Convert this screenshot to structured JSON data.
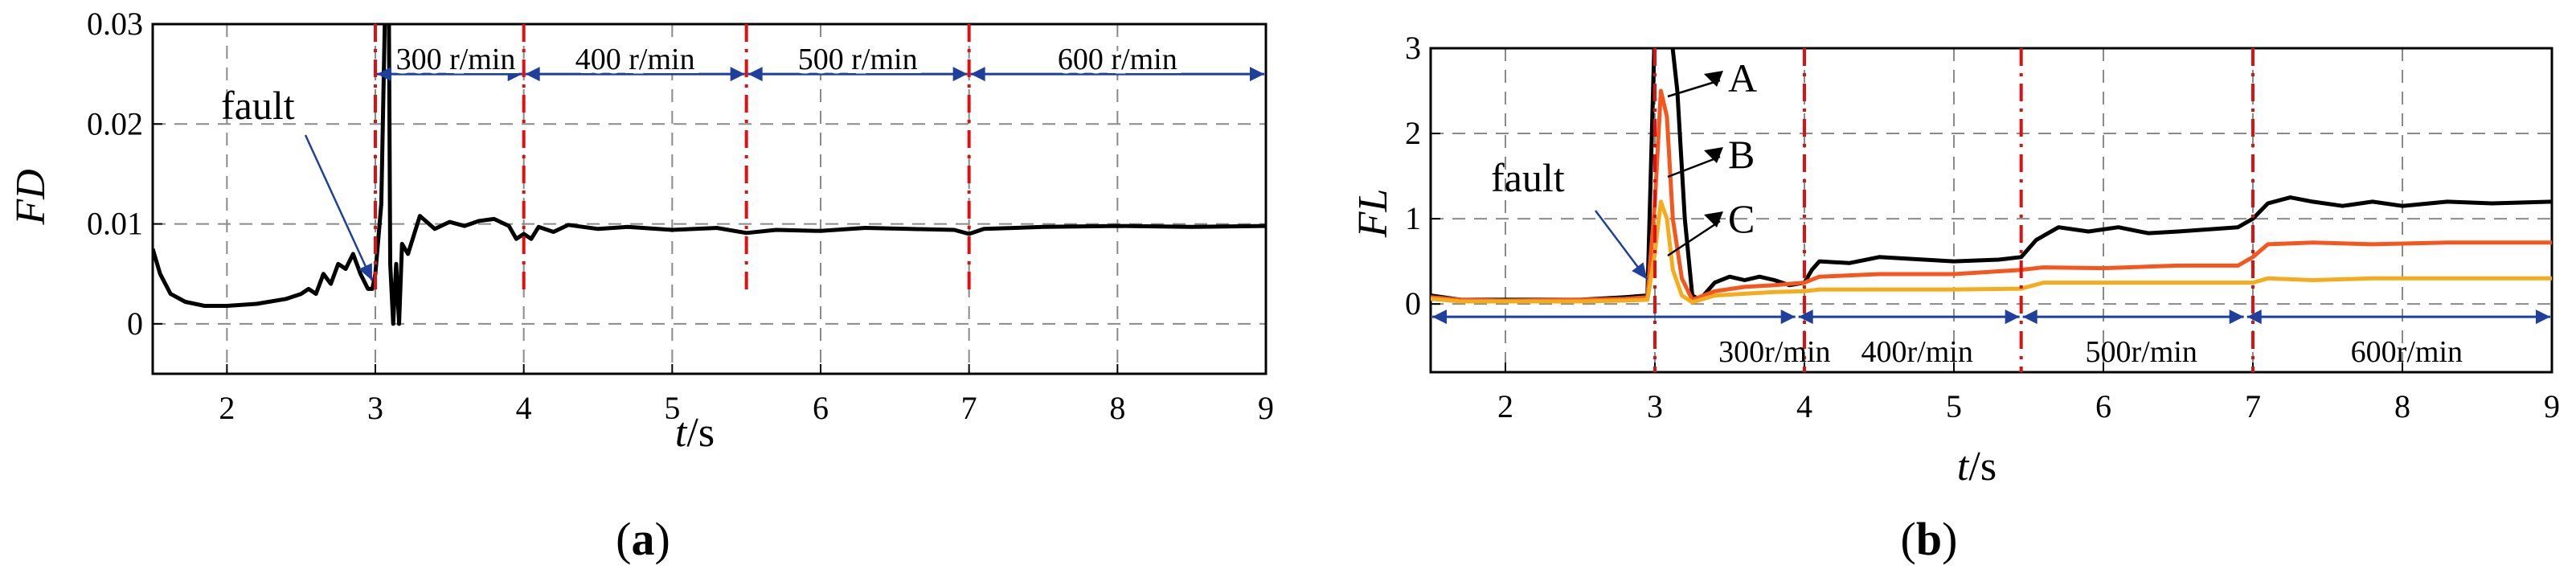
{
  "chart_data": [
    {
      "id": "a",
      "type": "line",
      "panel_label": "a",
      "xlabel_var": "t",
      "xlabel_unit": "/s",
      "ylabel": "FD",
      "xlim": [
        1.5,
        9
      ],
      "ylim": [
        -0.005,
        0.03
      ],
      "xticks": [
        2,
        3,
        4,
        5,
        6,
        7,
        8,
        9
      ],
      "yticks": [
        0,
        0.01,
        0.02,
        0.03
      ],
      "ytick_labels": [
        "0",
        "0.01",
        "0.02",
        "0.03"
      ],
      "grid": true,
      "speed_boundaries": [
        3,
        4,
        5.5,
        7
      ],
      "speed_regions": [
        {
          "label": "300 r/min",
          "from": 3,
          "to": 4
        },
        {
          "label": "400 r/min",
          "from": 4,
          "to": 5.5
        },
        {
          "label": "500 r/min",
          "from": 5.5,
          "to": 7
        },
        {
          "label": "600 r/min",
          "from": 7,
          "to": 9
        }
      ],
      "span_y": 0.025,
      "span_start": 1.5,
      "fault": {
        "label": "fault",
        "x": 3.0,
        "y": 0.004
      },
      "series": [
        {
          "color": "#000000",
          "points": [
            [
              1.5,
              0.0075
            ],
            [
              1.55,
              0.005
            ],
            [
              1.62,
              0.003
            ],
            [
              1.72,
              0.0022
            ],
            [
              1.85,
              0.0018
            ],
            [
              2.0,
              0.0018
            ],
            [
              2.2,
              0.002
            ],
            [
              2.4,
              0.0025
            ],
            [
              2.5,
              0.003
            ],
            [
              2.55,
              0.0035
            ],
            [
              2.6,
              0.003
            ],
            [
              2.65,
              0.005
            ],
            [
              2.7,
              0.004
            ],
            [
              2.75,
              0.006
            ],
            [
              2.8,
              0.0055
            ],
            [
              2.85,
              0.007
            ],
            [
              2.9,
              0.005
            ],
            [
              2.95,
              0.0035
            ],
            [
              2.98,
              0.0035
            ],
            [
              3.0,
              0.005
            ],
            [
              3.04,
              0.012
            ],
            [
              3.07,
              0.035
            ],
            [
              3.09,
              0.035
            ],
            [
              3.1,
              0.006
            ],
            [
              3.12,
              0.0
            ],
            [
              3.14,
              0.006
            ],
            [
              3.16,
              0.0
            ],
            [
              3.18,
              0.008
            ],
            [
              3.22,
              0.007
            ],
            [
              3.3,
              0.0108
            ],
            [
              3.4,
              0.0095
            ],
            [
              3.5,
              0.0102
            ],
            [
              3.6,
              0.0098
            ],
            [
              3.7,
              0.0103
            ],
            [
              3.8,
              0.0105
            ],
            [
              3.9,
              0.0098
            ],
            [
              3.95,
              0.0085
            ],
            [
              4.0,
              0.009
            ],
            [
              4.05,
              0.0085
            ],
            [
              4.1,
              0.0097
            ],
            [
              4.2,
              0.0092
            ],
            [
              4.3,
              0.0099
            ],
            [
              4.5,
              0.0095
            ],
            [
              4.7,
              0.0097
            ],
            [
              5.0,
              0.0094
            ],
            [
              5.3,
              0.0096
            ],
            [
              5.5,
              0.0091
            ],
            [
              5.7,
              0.0094
            ],
            [
              6.0,
              0.0093
            ],
            [
              6.3,
              0.0096
            ],
            [
              6.6,
              0.0095
            ],
            [
              6.9,
              0.0094
            ],
            [
              7.0,
              0.009
            ],
            [
              7.1,
              0.0095
            ],
            [
              7.5,
              0.0097
            ],
            [
              8.0,
              0.0098
            ],
            [
              8.5,
              0.0097
            ],
            [
              9.0,
              0.0098
            ]
          ]
        }
      ]
    },
    {
      "id": "b",
      "type": "line",
      "panel_label": "b",
      "xlabel_var": "t",
      "xlabel_unit": "/s",
      "ylabel": "FL",
      "xlim": [
        1.5,
        9
      ],
      "ylim": [
        -0.8,
        3
      ],
      "xticks": [
        2,
        3,
        4,
        5,
        6,
        7,
        8,
        9
      ],
      "yticks": [
        0,
        1,
        2,
        3
      ],
      "ytick_labels": [
        "0",
        "1",
        "2",
        "3"
      ],
      "grid": true,
      "speed_boundaries": [
        3,
        4,
        5.45,
        7
      ],
      "speed_regions": [
        {
          "label": "300r/min",
          "from": 1.5,
          "to": 3.95
        },
        {
          "label": "400r/min",
          "from": 3.95,
          "to": 5.45
        },
        {
          "label": "500r/min",
          "from": 5.45,
          "to": 6.95
        },
        {
          "label": "600r/min",
          "from": 6.95,
          "to": 9
        }
      ],
      "span_y": -0.15,
      "span_start": 1.5,
      "fault": {
        "label": "fault",
        "x": 2.97,
        "y": 0.25
      },
      "series_labels": [
        "A",
        "B",
        "C"
      ],
      "series": [
        {
          "name": "A",
          "color": "#000000",
          "points": [
            [
              1.5,
              0.1
            ],
            [
              1.7,
              0.05
            ],
            [
              2.0,
              0.05
            ],
            [
              2.5,
              0.05
            ],
            [
              2.8,
              0.08
            ],
            [
              2.95,
              0.1
            ],
            [
              3.0,
              3.3
            ],
            [
              3.05,
              3.3
            ],
            [
              3.1,
              3.3
            ],
            [
              3.15,
              2.5
            ],
            [
              3.2,
              1.0
            ],
            [
              3.25,
              0.1
            ],
            [
              3.3,
              0.05
            ],
            [
              3.4,
              0.25
            ],
            [
              3.5,
              0.32
            ],
            [
              3.6,
              0.28
            ],
            [
              3.7,
              0.32
            ],
            [
              3.8,
              0.28
            ],
            [
              3.9,
              0.22
            ],
            [
              4.0,
              0.25
            ],
            [
              4.05,
              0.4
            ],
            [
              4.1,
              0.5
            ],
            [
              4.3,
              0.48
            ],
            [
              4.5,
              0.55
            ],
            [
              4.8,
              0.52
            ],
            [
              5.0,
              0.5
            ],
            [
              5.3,
              0.52
            ],
            [
              5.45,
              0.55
            ],
            [
              5.55,
              0.75
            ],
            [
              5.7,
              0.9
            ],
            [
              5.9,
              0.85
            ],
            [
              6.1,
              0.9
            ],
            [
              6.3,
              0.83
            ],
            [
              6.5,
              0.85
            ],
            [
              6.9,
              0.9
            ],
            [
              7.0,
              1.0
            ],
            [
              7.1,
              1.18
            ],
            [
              7.25,
              1.25
            ],
            [
              7.4,
              1.2
            ],
            [
              7.6,
              1.15
            ],
            [
              7.8,
              1.2
            ],
            [
              8.0,
              1.15
            ],
            [
              8.3,
              1.2
            ],
            [
              8.6,
              1.18
            ],
            [
              9.0,
              1.2
            ]
          ]
        },
        {
          "name": "B",
          "color": "#f4561e",
          "points": [
            [
              1.5,
              0.08
            ],
            [
              1.7,
              0.05
            ],
            [
              2.0,
              0.04
            ],
            [
              2.5,
              0.05
            ],
            [
              2.8,
              0.06
            ],
            [
              2.95,
              0.08
            ],
            [
              3.0,
              1.2
            ],
            [
              3.04,
              2.5
            ],
            [
              3.08,
              2.2
            ],
            [
              3.12,
              1.0
            ],
            [
              3.18,
              0.3
            ],
            [
              3.25,
              0.05
            ],
            [
              3.4,
              0.15
            ],
            [
              3.6,
              0.2
            ],
            [
              3.8,
              0.22
            ],
            [
              4.0,
              0.25
            ],
            [
              4.1,
              0.32
            ],
            [
              4.5,
              0.35
            ],
            [
              5.0,
              0.35
            ],
            [
              5.45,
              0.4
            ],
            [
              5.6,
              0.43
            ],
            [
              6.0,
              0.42
            ],
            [
              6.5,
              0.45
            ],
            [
              6.9,
              0.45
            ],
            [
              7.0,
              0.55
            ],
            [
              7.1,
              0.7
            ],
            [
              7.4,
              0.72
            ],
            [
              7.8,
              0.7
            ],
            [
              8.3,
              0.72
            ],
            [
              9.0,
              0.72
            ]
          ]
        },
        {
          "name": "C",
          "color": "#f5ac1c",
          "points": [
            [
              1.5,
              0.06
            ],
            [
              1.7,
              0.03
            ],
            [
              2.0,
              0.03
            ],
            [
              2.5,
              0.03
            ],
            [
              2.8,
              0.04
            ],
            [
              2.95,
              0.05
            ],
            [
              3.0,
              0.6
            ],
            [
              3.04,
              1.2
            ],
            [
              3.08,
              1.0
            ],
            [
              3.12,
              0.4
            ],
            [
              3.18,
              0.1
            ],
            [
              3.25,
              0.02
            ],
            [
              3.4,
              0.1
            ],
            [
              3.6,
              0.12
            ],
            [
              3.8,
              0.14
            ],
            [
              4.0,
              0.15
            ],
            [
              4.1,
              0.17
            ],
            [
              4.5,
              0.17
            ],
            [
              5.0,
              0.17
            ],
            [
              5.45,
              0.18
            ],
            [
              5.6,
              0.25
            ],
            [
              6.0,
              0.25
            ],
            [
              6.5,
              0.25
            ],
            [
              6.9,
              0.25
            ],
            [
              7.0,
              0.25
            ],
            [
              7.1,
              0.3
            ],
            [
              7.4,
              0.28
            ],
            [
              7.8,
              0.3
            ],
            [
              8.3,
              0.3
            ],
            [
              9.0,
              0.3
            ]
          ]
        }
      ]
    }
  ]
}
